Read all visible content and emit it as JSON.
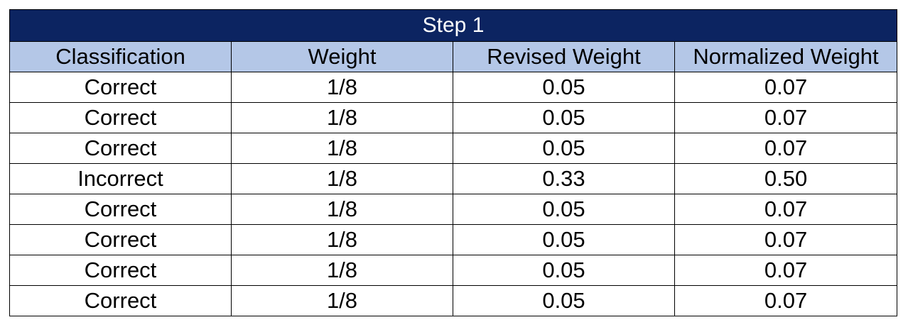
{
  "colors": {
    "title_background": "#0c2461",
    "title_text": "#ffffff",
    "header_background": "#b4c7e7",
    "cell_background": "#ffffff",
    "border": "#000000"
  },
  "chart_data": {
    "type": "table",
    "title": "Step 1",
    "columns": [
      "Classification",
      "Weight",
      "Revised Weight",
      "Normalized Weight"
    ],
    "rows": [
      [
        "Correct",
        "1/8",
        "0.05",
        "0.07"
      ],
      [
        "Correct",
        "1/8",
        "0.05",
        "0.07"
      ],
      [
        "Correct",
        "1/8",
        "0.05",
        "0.07"
      ],
      [
        "Incorrect",
        "1/8",
        "0.33",
        "0.50"
      ],
      [
        "Correct",
        "1/8",
        "0.05",
        "0.07"
      ],
      [
        "Correct",
        "1/8",
        "0.05",
        "0.07"
      ],
      [
        "Correct",
        "1/8",
        "0.05",
        "0.07"
      ],
      [
        "Correct",
        "1/8",
        "0.05",
        "0.07"
      ]
    ]
  }
}
